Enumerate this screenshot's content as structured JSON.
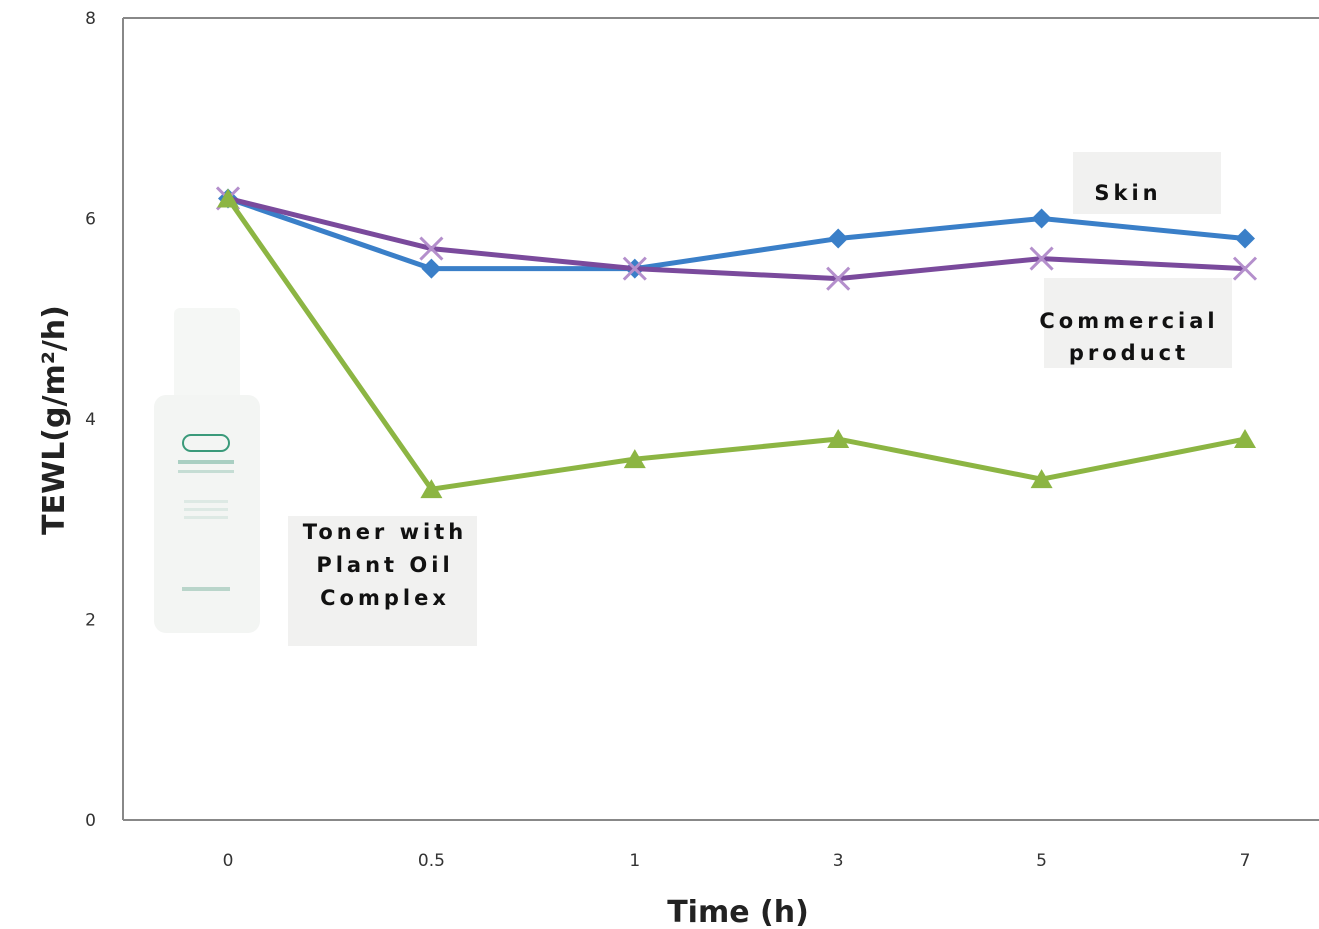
{
  "chart_data": {
    "type": "line",
    "xlabel": "Time (h)",
    "ylabel": "TEWL(g/m²/h)",
    "categories": [
      "0",
      "0.5",
      "1",
      "3",
      "5",
      "7"
    ],
    "ylim": [
      0,
      8
    ],
    "yticks": [
      "0",
      "2",
      "4",
      "6",
      "8"
    ],
    "grid": false,
    "series": [
      {
        "name": "Skin",
        "color": "#3a7fc8",
        "marker": "diamond",
        "values": [
          6.2,
          5.5,
          5.5,
          5.8,
          6.0,
          5.8
        ]
      },
      {
        "name": "Commercial product",
        "color": "#7a4a9c",
        "marker": "x",
        "values": [
          6.2,
          5.7,
          5.5,
          5.4,
          5.6,
          5.5
        ]
      },
      {
        "name": "Toner with Plant Oil Complex",
        "color": "#8cb543",
        "marker": "triangle",
        "values": [
          6.2,
          3.3,
          3.6,
          3.8,
          3.4,
          3.8
        ]
      }
    ],
    "annotations": {
      "skin": "Skin",
      "commercial_line1": "Commercial",
      "commercial_line2": "product",
      "toner_line1": "Toner with",
      "toner_line2": "Plant Oil",
      "toner_line3": "Complex"
    }
  },
  "product_image": {
    "icon": "toner-bottle-icon",
    "color": "#f4f6f4",
    "accent": "#3a9a7a"
  }
}
